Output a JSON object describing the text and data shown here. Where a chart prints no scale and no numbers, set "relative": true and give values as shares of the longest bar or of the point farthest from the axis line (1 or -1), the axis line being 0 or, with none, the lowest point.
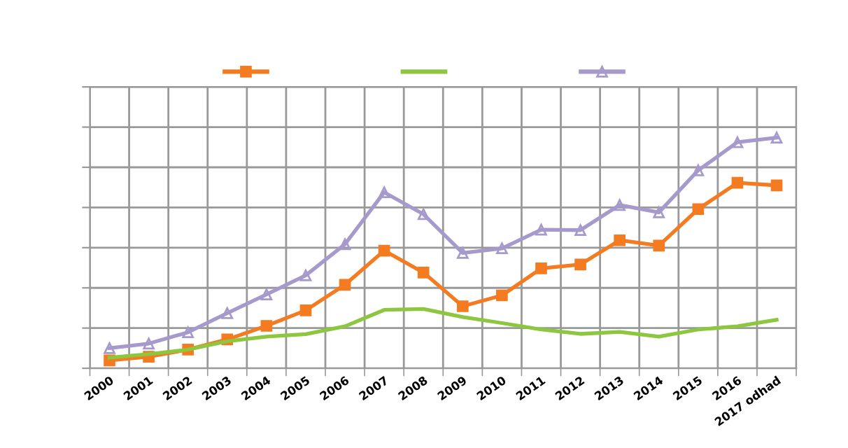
{
  "chart_data": {
    "type": "line",
    "relative": true,
    "categories": [
      "2000",
      "2001",
      "2002",
      "2003",
      "2004",
      "2005",
      "2006",
      "2007",
      "2008",
      "2009",
      "2010",
      "2011",
      "2012",
      "2013",
      "2014",
      "2015",
      "2016",
      "2017 odhad"
    ],
    "series": [
      {
        "color": "#f47b20",
        "marker": "square",
        "values": [
          0.034,
          0.05,
          0.081,
          0.125,
          0.184,
          0.251,
          0.362,
          0.51,
          0.415,
          0.269,
          0.316,
          0.433,
          0.45,
          0.555,
          0.532,
          0.69,
          0.804,
          0.793
        ]
      },
      {
        "color": "#8dc63f",
        "marker": "none",
        "values": [
          0.046,
          0.061,
          0.081,
          0.117,
          0.137,
          0.148,
          0.182,
          0.253,
          0.257,
          0.222,
          0.196,
          0.168,
          0.149,
          0.158,
          0.137,
          0.168,
          0.182,
          0.21
        ]
      },
      {
        "color": "#a59acb",
        "marker": "triangle",
        "values": [
          0.087,
          0.107,
          0.156,
          0.239,
          0.32,
          0.403,
          0.538,
          0.763,
          0.668,
          0.5,
          0.52,
          0.601,
          0.599,
          0.708,
          0.676,
          0.858,
          0.98,
          1.0
        ]
      }
    ],
    "grid": true,
    "line_style": "solid"
  }
}
